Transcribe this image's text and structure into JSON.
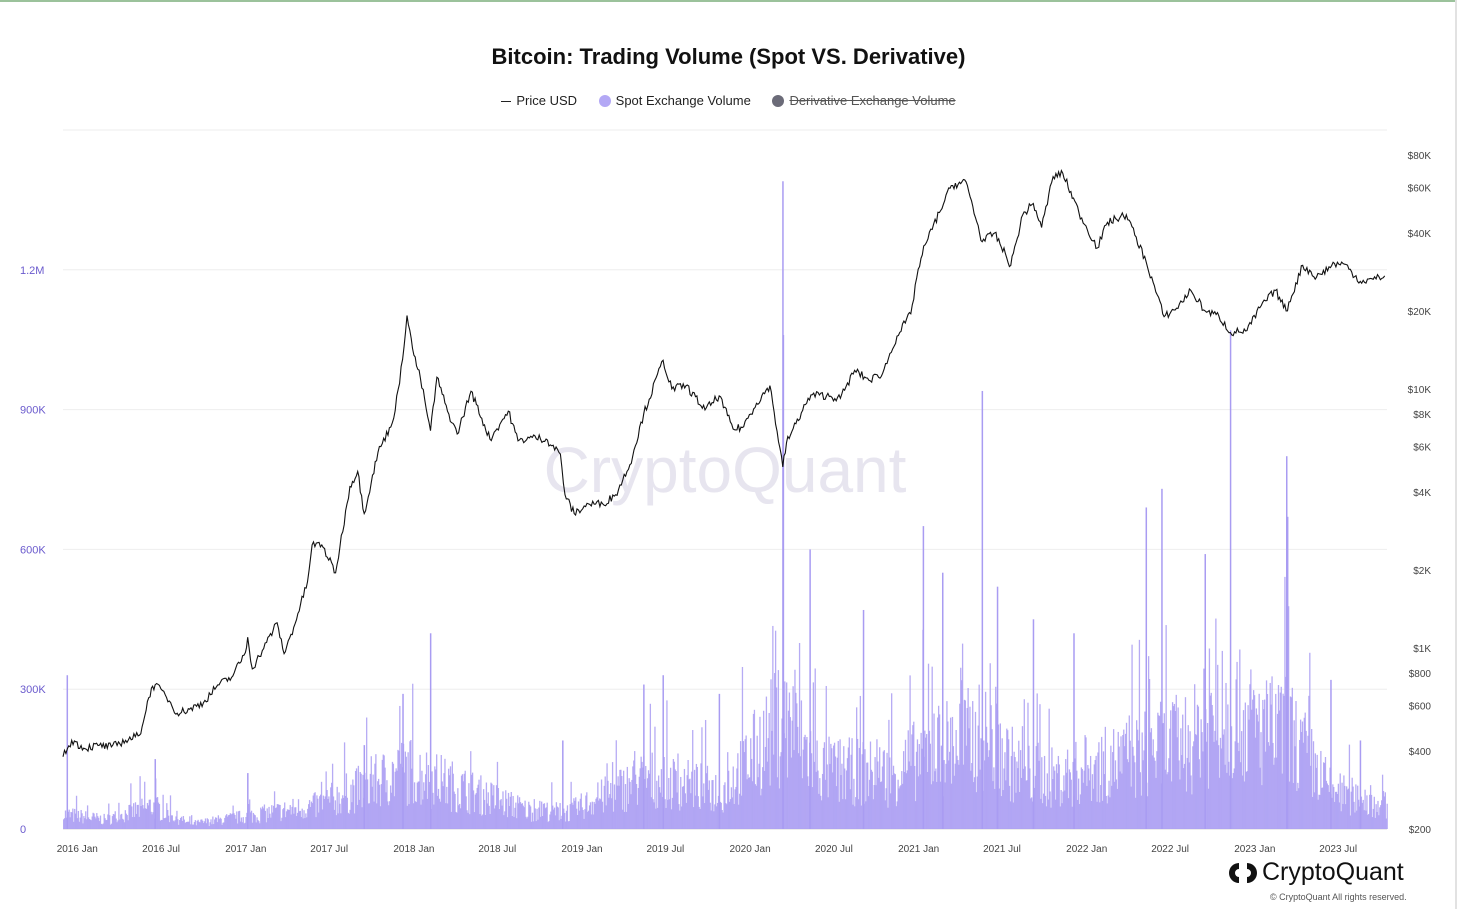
{
  "chart_data": {
    "type": "bar",
    "title": "Bitcoin: Trading Volume (Spot VS. Derivative)",
    "legend": [
      {
        "name": "Price USD",
        "marker": "line",
        "color": "#222222",
        "active": true
      },
      {
        "name": "Spot Exchange Volume",
        "marker": "dot",
        "color": "#b3a8f5",
        "active": true
      },
      {
        "name": "Derivative Exchange Volume",
        "marker": "dot",
        "color": "#6b6b78",
        "active": false
      }
    ],
    "legend_position": "top-center",
    "x_tick_labels": [
      "2016 Jan",
      "2016 Jul",
      "2017 Jan",
      "2017 Jul",
      "2018 Jan",
      "2018 Jul",
      "2019 Jan",
      "2019 Jul",
      "2020 Jan",
      "2020 Jul",
      "2021 Jan",
      "2021 Jul",
      "2022 Jan",
      "2022 Jul",
      "2023 Jan",
      "2023 Jul"
    ],
    "x_range": [
      "2015-12-01",
      "2023-10-15"
    ],
    "y_left": {
      "ticks": [
        0,
        300000,
        600000,
        900000,
        1200000
      ],
      "tick_labels": [
        "0",
        "300K",
        "600K",
        "900K",
        "1.2M"
      ],
      "range": [
        0,
        1500000
      ],
      "color": "#6a5acd"
    },
    "y_right": {
      "scale": "log",
      "tick_values": [
        200,
        400,
        600,
        800,
        1000,
        2000,
        4000,
        6000,
        8000,
        10000,
        20000,
        40000,
        60000,
        80000
      ],
      "tick_labels": [
        "$200",
        "$400",
        "$600",
        "$800",
        "$1K",
        "$2K",
        "$4K",
        "$6K",
        "$8K",
        "$10K",
        "$20K",
        "$40K",
        "$60K",
        "$80K"
      ]
    },
    "grid": true,
    "watermark": "CryptoQuant",
    "series": [
      {
        "name": "Price USD",
        "type": "line",
        "color": "#111111",
        "axis": "right",
        "points": [
          [
            "2015-12-01",
            380
          ],
          [
            "2015-12-20",
            440
          ],
          [
            "2016-01-15",
            410
          ],
          [
            "2016-02-15",
            420
          ],
          [
            "2016-03-15",
            415
          ],
          [
            "2016-04-15",
            440
          ],
          [
            "2016-05-15",
            460
          ],
          [
            "2016-06-10",
            700
          ],
          [
            "2016-06-18",
            720
          ],
          [
            "2016-07-10",
            660
          ],
          [
            "2016-08-05",
            560
          ],
          [
            "2016-09-01",
            580
          ],
          [
            "2016-10-01",
            615
          ],
          [
            "2016-11-01",
            720
          ],
          [
            "2016-12-01",
            770
          ],
          [
            "2016-12-31",
            960
          ],
          [
            "2017-01-05",
            1100
          ],
          [
            "2017-01-15",
            830
          ],
          [
            "2017-02-15",
            1050
          ],
          [
            "2017-03-10",
            1250
          ],
          [
            "2017-03-25",
            950
          ],
          [
            "2017-04-15",
            1200
          ],
          [
            "2017-05-15",
            1800
          ],
          [
            "2017-05-25",
            2500
          ],
          [
            "2017-06-15",
            2500
          ],
          [
            "2017-07-15",
            1950
          ],
          [
            "2017-08-15",
            4200
          ],
          [
            "2017-09-01",
            4800
          ],
          [
            "2017-09-15",
            3300
          ],
          [
            "2017-10-15",
            5700
          ],
          [
            "2017-11-15",
            7400
          ],
          [
            "2017-12-01",
            10500
          ],
          [
            "2017-12-17",
            19200
          ],
          [
            "2018-01-01",
            13500
          ],
          [
            "2018-01-15",
            11000
          ],
          [
            "2018-02-06",
            6900
          ],
          [
            "2018-02-20",
            11100
          ],
          [
            "2018-03-15",
            8200
          ],
          [
            "2018-04-05",
            6700
          ],
          [
            "2018-05-05",
            9800
          ],
          [
            "2018-06-15",
            6400
          ],
          [
            "2018-07-25",
            8200
          ],
          [
            "2018-08-15",
            6300
          ],
          [
            "2018-09-15",
            6500
          ],
          [
            "2018-10-15",
            6400
          ],
          [
            "2018-11-15",
            5600
          ],
          [
            "2018-11-25",
            3900
          ],
          [
            "2018-12-15",
            3300
          ],
          [
            "2019-01-15",
            3600
          ],
          [
            "2019-02-15",
            3600
          ],
          [
            "2019-03-15",
            3900
          ],
          [
            "2019-04-15",
            5100
          ],
          [
            "2019-05-15",
            8000
          ],
          [
            "2019-06-26",
            12900
          ],
          [
            "2019-07-15",
            10000
          ],
          [
            "2019-08-15",
            10300
          ],
          [
            "2019-09-25",
            8300
          ],
          [
            "2019-10-26",
            9400
          ],
          [
            "2019-11-25",
            7000
          ],
          [
            "2019-12-15",
            7100
          ],
          [
            "2020-01-15",
            8800
          ],
          [
            "2020-02-13",
            10300
          ],
          [
            "2020-03-12",
            5000
          ],
          [
            "2020-03-20",
            6200
          ],
          [
            "2020-04-30",
            8700
          ],
          [
            "2020-05-15",
            9500
          ],
          [
            "2020-06-15",
            9400
          ],
          [
            "2020-07-15",
            9200
          ],
          [
            "2020-08-15",
            11800
          ],
          [
            "2020-09-15",
            10800
          ],
          [
            "2020-10-15",
            11500
          ],
          [
            "2020-11-15",
            16000
          ],
          [
            "2020-12-15",
            19500
          ],
          [
            "2020-12-31",
            29000
          ],
          [
            "2021-01-15",
            36000
          ],
          [
            "2021-02-15",
            48000
          ],
          [
            "2021-03-13",
            61000
          ],
          [
            "2021-04-14",
            63000
          ],
          [
            "2021-05-19",
            37000
          ],
          [
            "2021-06-15",
            40000
          ],
          [
            "2021-07-20",
            30000
          ],
          [
            "2021-08-15",
            47000
          ],
          [
            "2021-09-07",
            52000
          ],
          [
            "2021-09-25",
            42000
          ],
          [
            "2021-10-20",
            66000
          ],
          [
            "2021-11-10",
            68000
          ],
          [
            "2021-12-15",
            48000
          ],
          [
            "2022-01-24",
            35000
          ],
          [
            "2022-02-15",
            44000
          ],
          [
            "2022-03-28",
            47000
          ],
          [
            "2022-05-10",
            31000
          ],
          [
            "2022-06-18",
            19000
          ],
          [
            "2022-07-15",
            20500
          ],
          [
            "2022-08-15",
            24000
          ],
          [
            "2022-09-15",
            20000
          ],
          [
            "2022-10-15",
            19100
          ],
          [
            "2022-11-09",
            16500
          ],
          [
            "2022-12-15",
            16800
          ],
          [
            "2023-01-15",
            21000
          ],
          [
            "2023-02-15",
            24000
          ],
          [
            "2023-03-10",
            20000
          ],
          [
            "2023-04-15",
            30000
          ],
          [
            "2023-05-15",
            27000
          ],
          [
            "2023-06-23",
            30500
          ],
          [
            "2023-07-15",
            30300
          ],
          [
            "2023-08-18",
            26000
          ],
          [
            "2023-09-15",
            26500
          ],
          [
            "2023-10-10",
            27300
          ]
        ]
      },
      {
        "name": "Spot Exchange Volume",
        "type": "bar",
        "color": "#a99cf2",
        "axis": "left",
        "baseline_profile": [
          [
            "2015-12-01",
            35000
          ],
          [
            "2016-03-01",
            22000
          ],
          [
            "2016-06-10",
            55000
          ],
          [
            "2016-09-01",
            12000
          ],
          [
            "2017-01-01",
            30000
          ],
          [
            "2017-06-01",
            55000
          ],
          [
            "2017-12-15",
            140000
          ],
          [
            "2018-04-01",
            100000
          ],
          [
            "2018-09-01",
            45000
          ],
          [
            "2018-12-01",
            40000
          ],
          [
            "2019-05-15",
            120000
          ],
          [
            "2019-07-15",
            110000
          ],
          [
            "2019-11-01",
            90000
          ],
          [
            "2020-03-12",
            260000
          ],
          [
            "2020-06-01",
            140000
          ],
          [
            "2020-11-01",
            130000
          ],
          [
            "2021-02-01",
            190000
          ],
          [
            "2021-05-20",
            220000
          ],
          [
            "2021-08-15",
            130000
          ],
          [
            "2021-11-01",
            120000
          ],
          [
            "2022-05-10",
            180000
          ],
          [
            "2022-08-15",
            210000
          ],
          [
            "2022-11-09",
            280000
          ],
          [
            "2023-01-15",
            230000
          ],
          [
            "2023-03-15",
            230000
          ],
          [
            "2023-06-15",
            90000
          ],
          [
            "2023-10-15",
            55000
          ]
        ],
        "spikes": [
          [
            "2015-12-10",
            330000
          ],
          [
            "2016-06-18",
            150000
          ],
          [
            "2017-01-05",
            120000
          ],
          [
            "2017-09-15",
            180000
          ],
          [
            "2017-12-08",
            290000
          ],
          [
            "2018-02-06",
            420000
          ],
          [
            "2018-11-20",
            190000
          ],
          [
            "2019-05-15",
            310000
          ],
          [
            "2019-06-26",
            330000
          ],
          [
            "2019-10-26",
            290000
          ],
          [
            "2020-03-12",
            1390000
          ],
          [
            "2020-03-13",
            1060000
          ],
          [
            "2020-05-10",
            600000
          ],
          [
            "2020-09-03",
            470000
          ],
          [
            "2021-01-11",
            650000
          ],
          [
            "2021-02-22",
            550000
          ],
          [
            "2021-05-19",
            940000
          ],
          [
            "2021-06-21",
            520000
          ],
          [
            "2021-09-07",
            450000
          ],
          [
            "2021-12-04",
            420000
          ],
          [
            "2022-05-10",
            690000
          ],
          [
            "2022-06-13",
            730000
          ],
          [
            "2022-09-15",
            590000
          ],
          [
            "2022-11-09",
            1070000
          ],
          [
            "2023-03-11",
            800000
          ],
          [
            "2023-03-13",
            670000
          ],
          [
            "2023-06-15",
            320000
          ],
          [
            "2023-08-18",
            190000
          ]
        ]
      }
    ]
  },
  "branding": {
    "logo_text": "CryptoQuant",
    "copyright": "© CryptoQuant All rights reserved."
  }
}
